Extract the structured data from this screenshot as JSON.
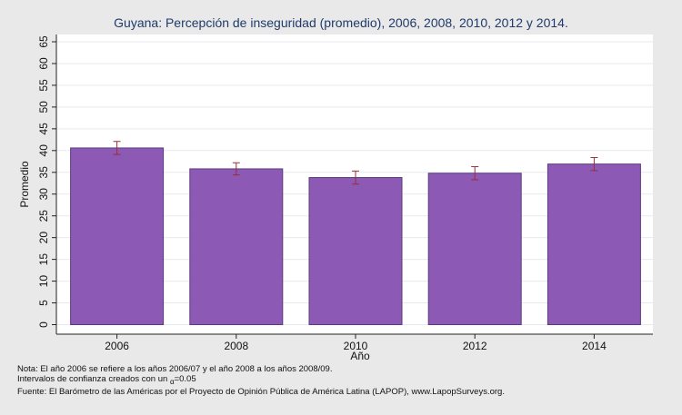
{
  "chart_data": {
    "type": "bar",
    "title": "Guyana: Percepción de inseguridad (promedio), 2006, 2008, 2010, 2012 y 2014.",
    "xlabel": "Año",
    "ylabel": "Promedio",
    "categories": [
      "2006",
      "2008",
      "2010",
      "2012",
      "2014"
    ],
    "values": [
      40.6,
      35.8,
      33.8,
      34.8,
      36.9
    ],
    "ci_low": [
      39.1,
      34.4,
      32.3,
      33.3,
      35.4
    ],
    "ci_high": [
      42.1,
      37.2,
      35.3,
      36.3,
      38.4
    ],
    "ylim": [
      0,
      65
    ],
    "yticks": [
      0,
      5,
      10,
      15,
      20,
      25,
      30,
      35,
      40,
      45,
      50,
      55,
      60,
      65
    ],
    "grid": true,
    "colors": {
      "bar": "#8c59b4",
      "bar_edge": "#5e3a7d",
      "error_bar": "#9b2d3a",
      "plot_bg": "#ffffff",
      "page_bg": "#e9e9e9"
    }
  },
  "notes": {
    "line1": "Nota: El año 2006 se refiere a los años 2006/07 y el año 2008 a los años 2008/09.",
    "line2_prefix": "Intervalos de confianza creados con un ",
    "alpha_symbol": "α",
    "line2_suffix": "=0.05",
    "line3": "Fuente: El Barómetro de las Américas por el Proyecto de Opinión Pública de América Latina (LAPOP), www.LapopSurveys.org."
  }
}
